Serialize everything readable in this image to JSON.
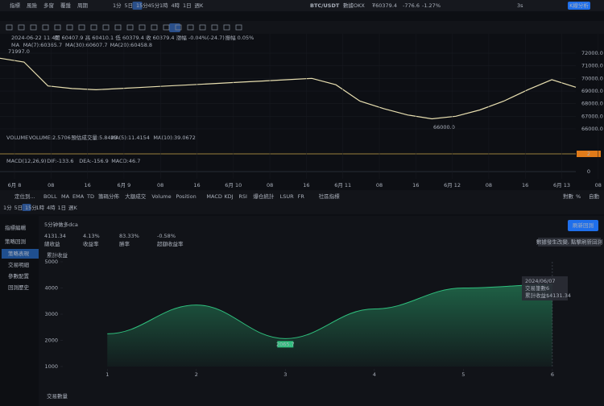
{
  "topbar": {
    "menu": [
      "指標",
      "風險",
      "多窗",
      "覆盤",
      "周期"
    ],
    "periods": [
      "1分",
      "5日",
      "15分",
      "45分",
      "1時",
      "4時",
      "1日",
      "週K"
    ],
    "symbol": "BTC/USDT",
    "source": "數據OKX",
    "price": "₮60379.4",
    "change": "-776.6",
    "change_pct": "-1.27%",
    "speed": "3s",
    "analysis": "K線分析"
  },
  "ohlc": {
    "time": "2024-06-22 11:40",
    "items": [
      "開 60407.9",
      "高 60410.1",
      "低 60379.4",
      "收 60379.4",
      "漲幅 -0.04%(-24.7)",
      "振幅 0.05%"
    ]
  },
  "ma_legend": [
    "MA",
    "MA(7):60365.7",
    "MA(30):60607.7",
    "MA(20):60458.8"
  ],
  "price_chart": {
    "type": "line",
    "color": "#e8dfb0",
    "values": [
      71600,
      71300,
      69400,
      69200,
      69100,
      69200,
      69300,
      69400,
      69500,
      69600,
      69700,
      69800,
      69900,
      70000,
      69500,
      68200,
      67600,
      67100,
      66800,
      67000,
      67500,
      68200,
      69100,
      69900,
      69300
    ],
    "ylim": [
      65360,
      72640
    ],
    "yticks": [
      {
        "value": 66000,
        "label": "66000.0"
      },
      {
        "value": 67000,
        "label": "67000.0"
      },
      {
        "value": 68000,
        "label": "68000.0"
      },
      {
        "value": 69000,
        "label": "69000.0"
      },
      {
        "value": 70000,
        "label": "70000.0"
      },
      {
        "value": 71000,
        "label": "71000.0"
      },
      {
        "value": 72000,
        "label": "72000.0"
      }
    ],
    "high_mark": "71997.0",
    "low_mark": "66000.0"
  },
  "volume_legend": [
    "VOLUME",
    "VOLUME:2.5706",
    "預估成交量:5.8423",
    "MA(5):11.4154",
    "MA(10):39.0672"
  ],
  "volume_axis": "2",
  "macd_legend": [
    "MACD(12,26,9)",
    "DIF:-133.6",
    "DEA:-156.9",
    "MACD:46.7"
  ],
  "macd_axis": "0",
  "dates": [
    "6月 8",
    "08",
    "16",
    "6月 9",
    "08",
    "16",
    "6月 10",
    "08",
    "16",
    "6月 11",
    "08",
    "16",
    "6月 12",
    "08",
    "16",
    "6月 13",
    "08"
  ],
  "indicator_bar": {
    "locate": "定位到...",
    "items": [
      "BOLL",
      "MA",
      "EMA",
      "TD",
      "籌碼分佈",
      "大額成交",
      "Volume",
      "Position",
      "MACD",
      "KDJ",
      "RSI",
      "爆仓統計",
      "LSUR",
      "FR"
    ],
    "community": "社區指標",
    "right": [
      "對數",
      "%",
      "自動"
    ]
  },
  "period_row": [
    "1分",
    "5日",
    "15分",
    "1時",
    "4時",
    "1日",
    "週K"
  ],
  "side_menu": {
    "tabs": [
      "指標編輯",
      "策略回測"
    ],
    "items": [
      "策略表現",
      "交易明細",
      "參數配置",
      "回測歷史"
    ]
  },
  "strategy": {
    "title": "5分钟做多dca",
    "stats": [
      {
        "value": "4131.34",
        "label": "總收益"
      },
      {
        "value": "4.13%",
        "label": "收益率"
      },
      {
        "value": "83.33%",
        "label": "勝率"
      },
      {
        "value": "-0.58%",
        "label": "超額收益率"
      }
    ],
    "refresh": "刷新回測",
    "notice": "數據發生改變, 點擊刷新回測"
  },
  "chart_data": {
    "type": "area",
    "y_label": "累計收益",
    "x_label": "交易數量",
    "x": [
      1,
      2,
      3,
      4,
      5,
      6
    ],
    "values": [
      2250,
      3350,
      2065.7,
      3200,
      4000,
      4131.34
    ],
    "color": "#2fbf7d",
    "xlim": [
      0.5,
      6.2
    ],
    "xticks": [
      1,
      2,
      3,
      4,
      5,
      6
    ],
    "ylim": [
      1000,
      5000
    ],
    "yticks": [
      1000,
      2000,
      3000,
      4000,
      5000
    ]
  },
  "tooltip": {
    "date": "2024/06/07",
    "rows": [
      [
        "交易筆數",
        "6"
      ],
      [
        "累計收益",
        "$4131.34"
      ]
    ]
  }
}
